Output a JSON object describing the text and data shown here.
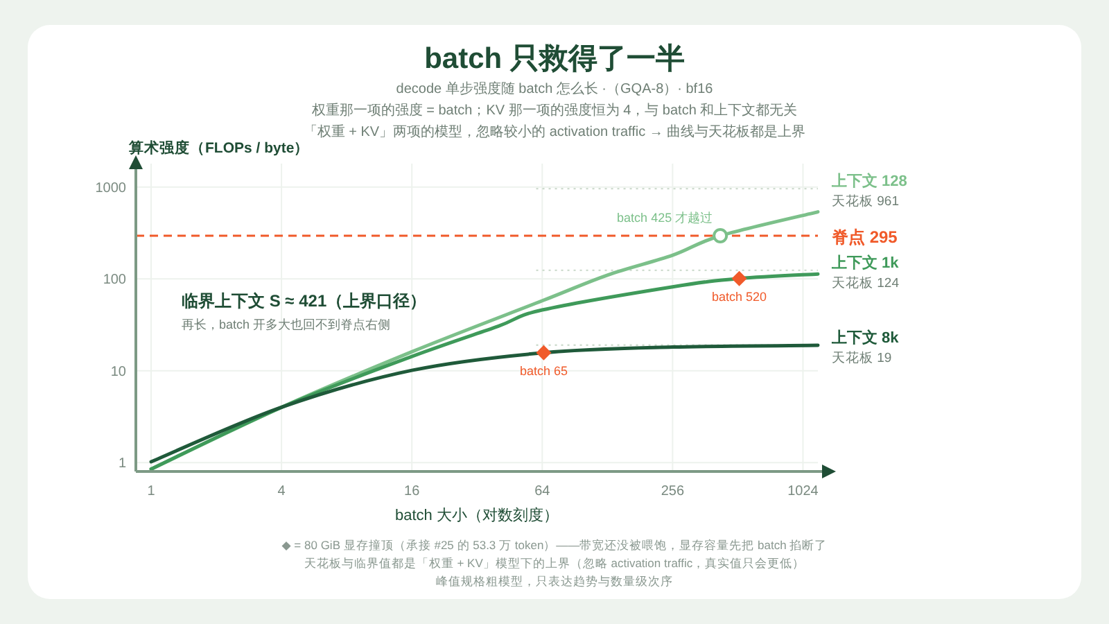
{
  "chart_data": {
    "type": "line",
    "title": "batch 只救得了一半",
    "subtitle": [
      "decode 单步强度随 batch 怎么长 ·（GQA-8）· bf16",
      "权重那一项的强度 = batch；KV 那一项的强度恒为 4，与 batch 和上下文都无关",
      "「权重 + KV」两项的模型，忽略较小的 activation traffic → 曲线与天花板都是上界"
    ],
    "xlabel": "batch 大小（对数刻度）",
    "ylabel": "算术强度（FLOPs / byte）",
    "log": "xy",
    "grid": true,
    "xlim": [
      0.85,
      1200
    ],
    "ylim": [
      0.8,
      1800
    ],
    "xticks": [
      1,
      4,
      16,
      64,
      256,
      1024
    ],
    "yticks": [
      1,
      10,
      100,
      1000
    ],
    "series": [
      {
        "name": "上下文 128",
        "color": "#7cc08a",
        "x": [
          1,
          4,
          16,
          64,
          128,
          256,
          425,
          1200
        ],
        "values": [
          0.85,
          4,
          16.1,
          57.8,
          110,
          181,
          295,
          537
        ]
      },
      {
        "name": "上下文 1k",
        "color": "#3f9a5a",
        "x": [
          1,
          4,
          16,
          40,
          64,
          256,
          520,
          1200
        ],
        "values": [
          0.85,
          4,
          14.3,
          30.5,
          45.9,
          82,
          101,
          113
        ]
      },
      {
        "name": "上下文 8k",
        "color": "#1f5a3a",
        "x": [
          1,
          4,
          16,
          65,
          256,
          1200
        ],
        "values": [
          1.02,
          4,
          10.1,
          15.7,
          18.1,
          18.9
        ]
      },
      {
        "type": "scatter",
        "marker": "diamond",
        "color": "#f05a2a",
        "x": [
          65,
          520
        ],
        "values": [
          15.7,
          101
        ]
      },
      {
        "type": "scatter",
        "marker": "circle",
        "color": "#7cc08a",
        "x": [
          425
        ],
        "values": [
          295
        ]
      }
    ],
    "ref_lines": [
      {
        "axis": "y",
        "value": 295,
        "label": "脊点 295",
        "color": "#f05a2a",
        "line_style": "dashed"
      },
      {
        "axis": "y",
        "value": 961,
        "label": "天花板 961",
        "color": "#cfdccf",
        "line_style": "dotted"
      },
      {
        "axis": "y",
        "value": 124,
        "label": "天花板 124",
        "color": "#cfdccf",
        "line_style": "dotted"
      },
      {
        "axis": "y",
        "value": 19,
        "label": "天花板 19",
        "color": "#cfdccf",
        "line_style": "dotted"
      }
    ],
    "annotations": [
      "临界上下文 S ≈ 421（上界口径）",
      "再长，batch 开多大也回不到脊点右侧",
      {
        "text": "batch 425 才越过",
        "x": 425,
        "y": 295
      },
      {
        "text": "batch 520",
        "x": 520,
        "y": 101
      },
      {
        "text": "batch 65",
        "x": 65,
        "y": 15.7
      },
      "◆ = 80 GiB 显存撞顶（承接 #25 的 53.3 万 token）——带宽还没被喂饱，显存容量先把 batch 掐断了",
      "天花板与临界值都是「权重 + KV」模型下的上界（忽略 activation traffic，真实值只会更低）",
      "峰值规格粗模型，只表达趋势与数量级次序"
    ]
  }
}
